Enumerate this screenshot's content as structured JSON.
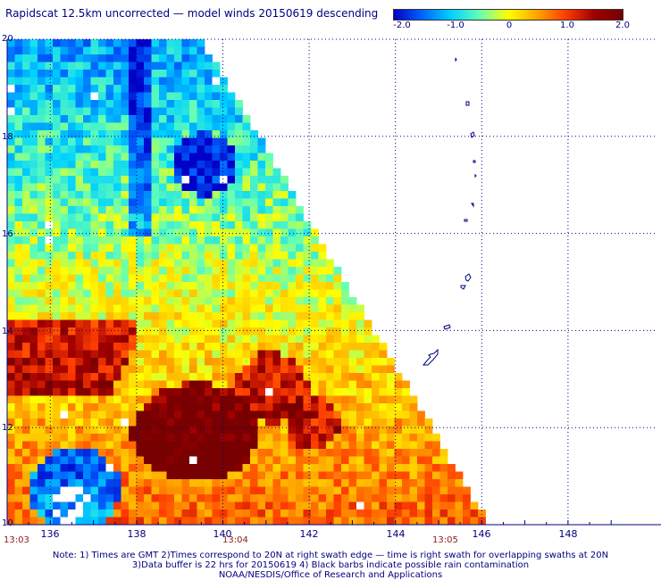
{
  "title": "Rapidscat 12.5km uncorrected — model winds 20150619 descending",
  "colorbar": {
    "ticks": [
      "-2.0",
      "-1.0",
      "0",
      "1.0",
      "2.0"
    ],
    "tick_values": [
      -2.0,
      -1.0,
      0,
      1.0,
      2.0
    ],
    "colors": [
      "#0000c8",
      "#0064ff",
      "#00d2ff",
      "#64ffb4",
      "#ffff00",
      "#ffa500",
      "#ff3c00",
      "#a00000",
      "#780000"
    ]
  },
  "axes": {
    "lon_labels": [
      "136",
      "138",
      "140",
      "142",
      "144",
      "146",
      "148"
    ],
    "lat_labels": [
      "20",
      "18",
      "16",
      "14",
      "12",
      "10"
    ],
    "lon_values": [
      136,
      138,
      140,
      142,
      144,
      146,
      148
    ],
    "lat_values": [
      20,
      18,
      16,
      14,
      12,
      10
    ]
  },
  "times": [
    "13:03",
    "13:04",
    "13:05"
  ],
  "notes": [
    "Note: 1) Times are GMT 2)Times correspond to 20N at right swath edge — time is right swath for overlapping swaths at 20N",
    "3)Data buffer is 22 hrs for 20150619 4) Black barbs indicate possible rain contamination",
    "NOAA/NESDIS/Office of Research and Applications"
  ],
  "colors": {
    "axis": "#000080",
    "coast": "#000080",
    "grid": "#000080",
    "time": "#8b1a1a"
  }
}
